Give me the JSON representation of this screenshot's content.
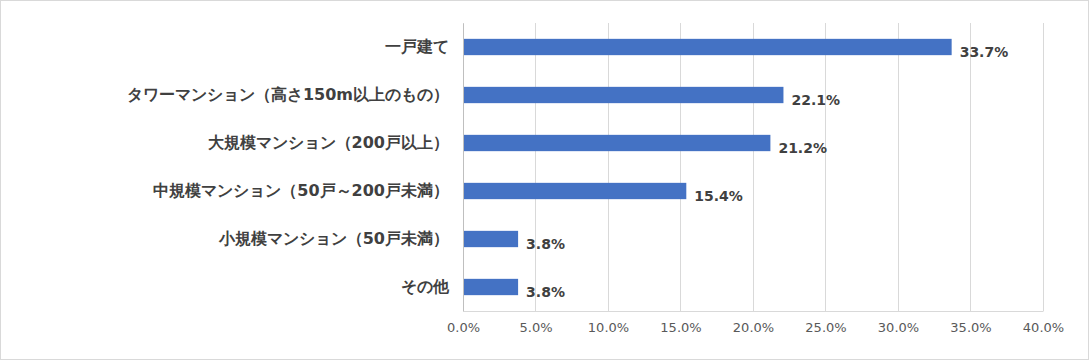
{
  "chart_data": {
    "type": "bar",
    "orientation": "horizontal",
    "categories": [
      "一戸建て",
      "タワーマンション（高さ150m以上のもの）",
      "大規模マンション（200戸以上）",
      "中規模マンション（50戸～200戸未満）",
      "小規模マンション（50戸未満）",
      "その他"
    ],
    "values": [
      33.7,
      22.1,
      21.2,
      15.4,
      3.8,
      3.8
    ],
    "value_labels": [
      "33.7%",
      "22.1%",
      "21.2%",
      "15.4%",
      "3.8%",
      "3.8%"
    ],
    "color": "#4472c4",
    "xlim": [
      0,
      40
    ],
    "xticks": [
      {
        "value": 0,
        "label": "0.0%"
      },
      {
        "value": 5,
        "label": "5.0%"
      },
      {
        "value": 10,
        "label": "10.0%"
      },
      {
        "value": 15,
        "label": "15.0%"
      },
      {
        "value": 20,
        "label": "20.0%"
      },
      {
        "value": 25,
        "label": "25.0%"
      },
      {
        "value": 30,
        "label": "30.0%"
      },
      {
        "value": 35,
        "label": "35.0%"
      },
      {
        "value": 40,
        "label": "40.0%"
      }
    ],
    "grid": true,
    "data_labels": true
  }
}
